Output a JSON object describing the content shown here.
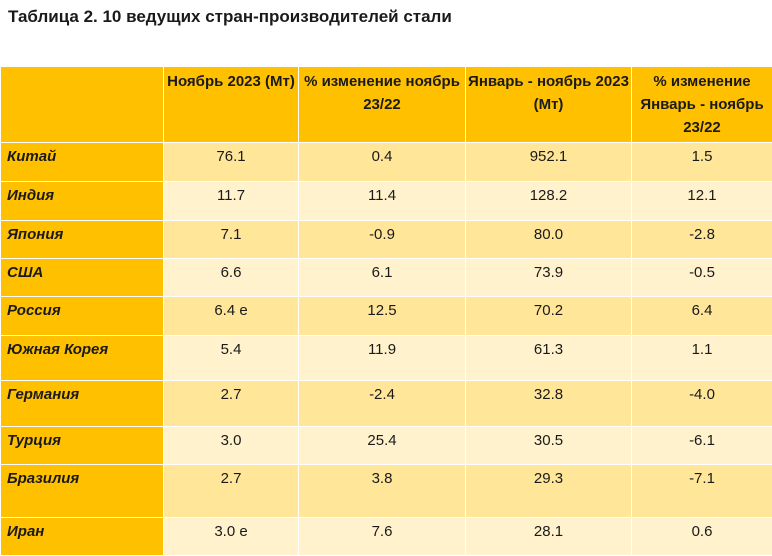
{
  "title": "Таблица 2. 10 ведущих стран-производителей стали",
  "table": {
    "headers": [
      "",
      "Ноябрь 2023 (Мт)",
      "% изменение ноябрь 23/22",
      "Январь - ноябрь 2023 (Мт)",
      "% изменение Январь - ноябрь 23/22"
    ],
    "rows": [
      {
        "country": "Китай",
        "nov_2023": "76.1",
        "nov_change": "0.4",
        "ytd_2023": "952.1",
        "ytd_change": "1.5"
      },
      {
        "country": "Индия",
        "nov_2023": "11.7",
        "nov_change": "11.4",
        "ytd_2023": "128.2",
        "ytd_change": "12.1"
      },
      {
        "country": "Япония",
        "nov_2023": "7.1",
        "nov_change": "-0.9",
        "ytd_2023": "80.0",
        "ytd_change": "-2.8"
      },
      {
        "country": "США",
        "nov_2023": "6.6",
        "nov_change": "6.1",
        "ytd_2023": "73.9",
        "ytd_change": "-0.5"
      },
      {
        "country": "Россия",
        "nov_2023": "6.4 e",
        "nov_change": "12.5",
        "ytd_2023": "70.2",
        "ytd_change": "6.4"
      },
      {
        "country": "Южная Корея",
        "nov_2023": "5.4",
        "nov_change": "11.9",
        "ytd_2023": "61.3",
        "ytd_change": "1.1"
      },
      {
        "country": "Германия",
        "nov_2023": "2.7",
        "nov_change": "-2.4",
        "ytd_2023": "32.8",
        "ytd_change": "-4.0"
      },
      {
        "country": "Турция",
        "nov_2023": "3.0",
        "nov_change": "25.4",
        "ytd_2023": "30.5",
        "ytd_change": "-6.1"
      },
      {
        "country": "Бразилия",
        "nov_2023": "2.7",
        "nov_change": "3.8",
        "ytd_2023": "29.3",
        "ytd_change": "-7.1"
      },
      {
        "country": "Иран",
        "nov_2023": "3.0 e",
        "nov_change": "7.6",
        "ytd_2023": "28.1",
        "ytd_change": "0.6"
      }
    ]
  },
  "colors": {
    "header": "#ffc000",
    "row_odd": "#ffe699",
    "row_even": "#fff2cc"
  }
}
